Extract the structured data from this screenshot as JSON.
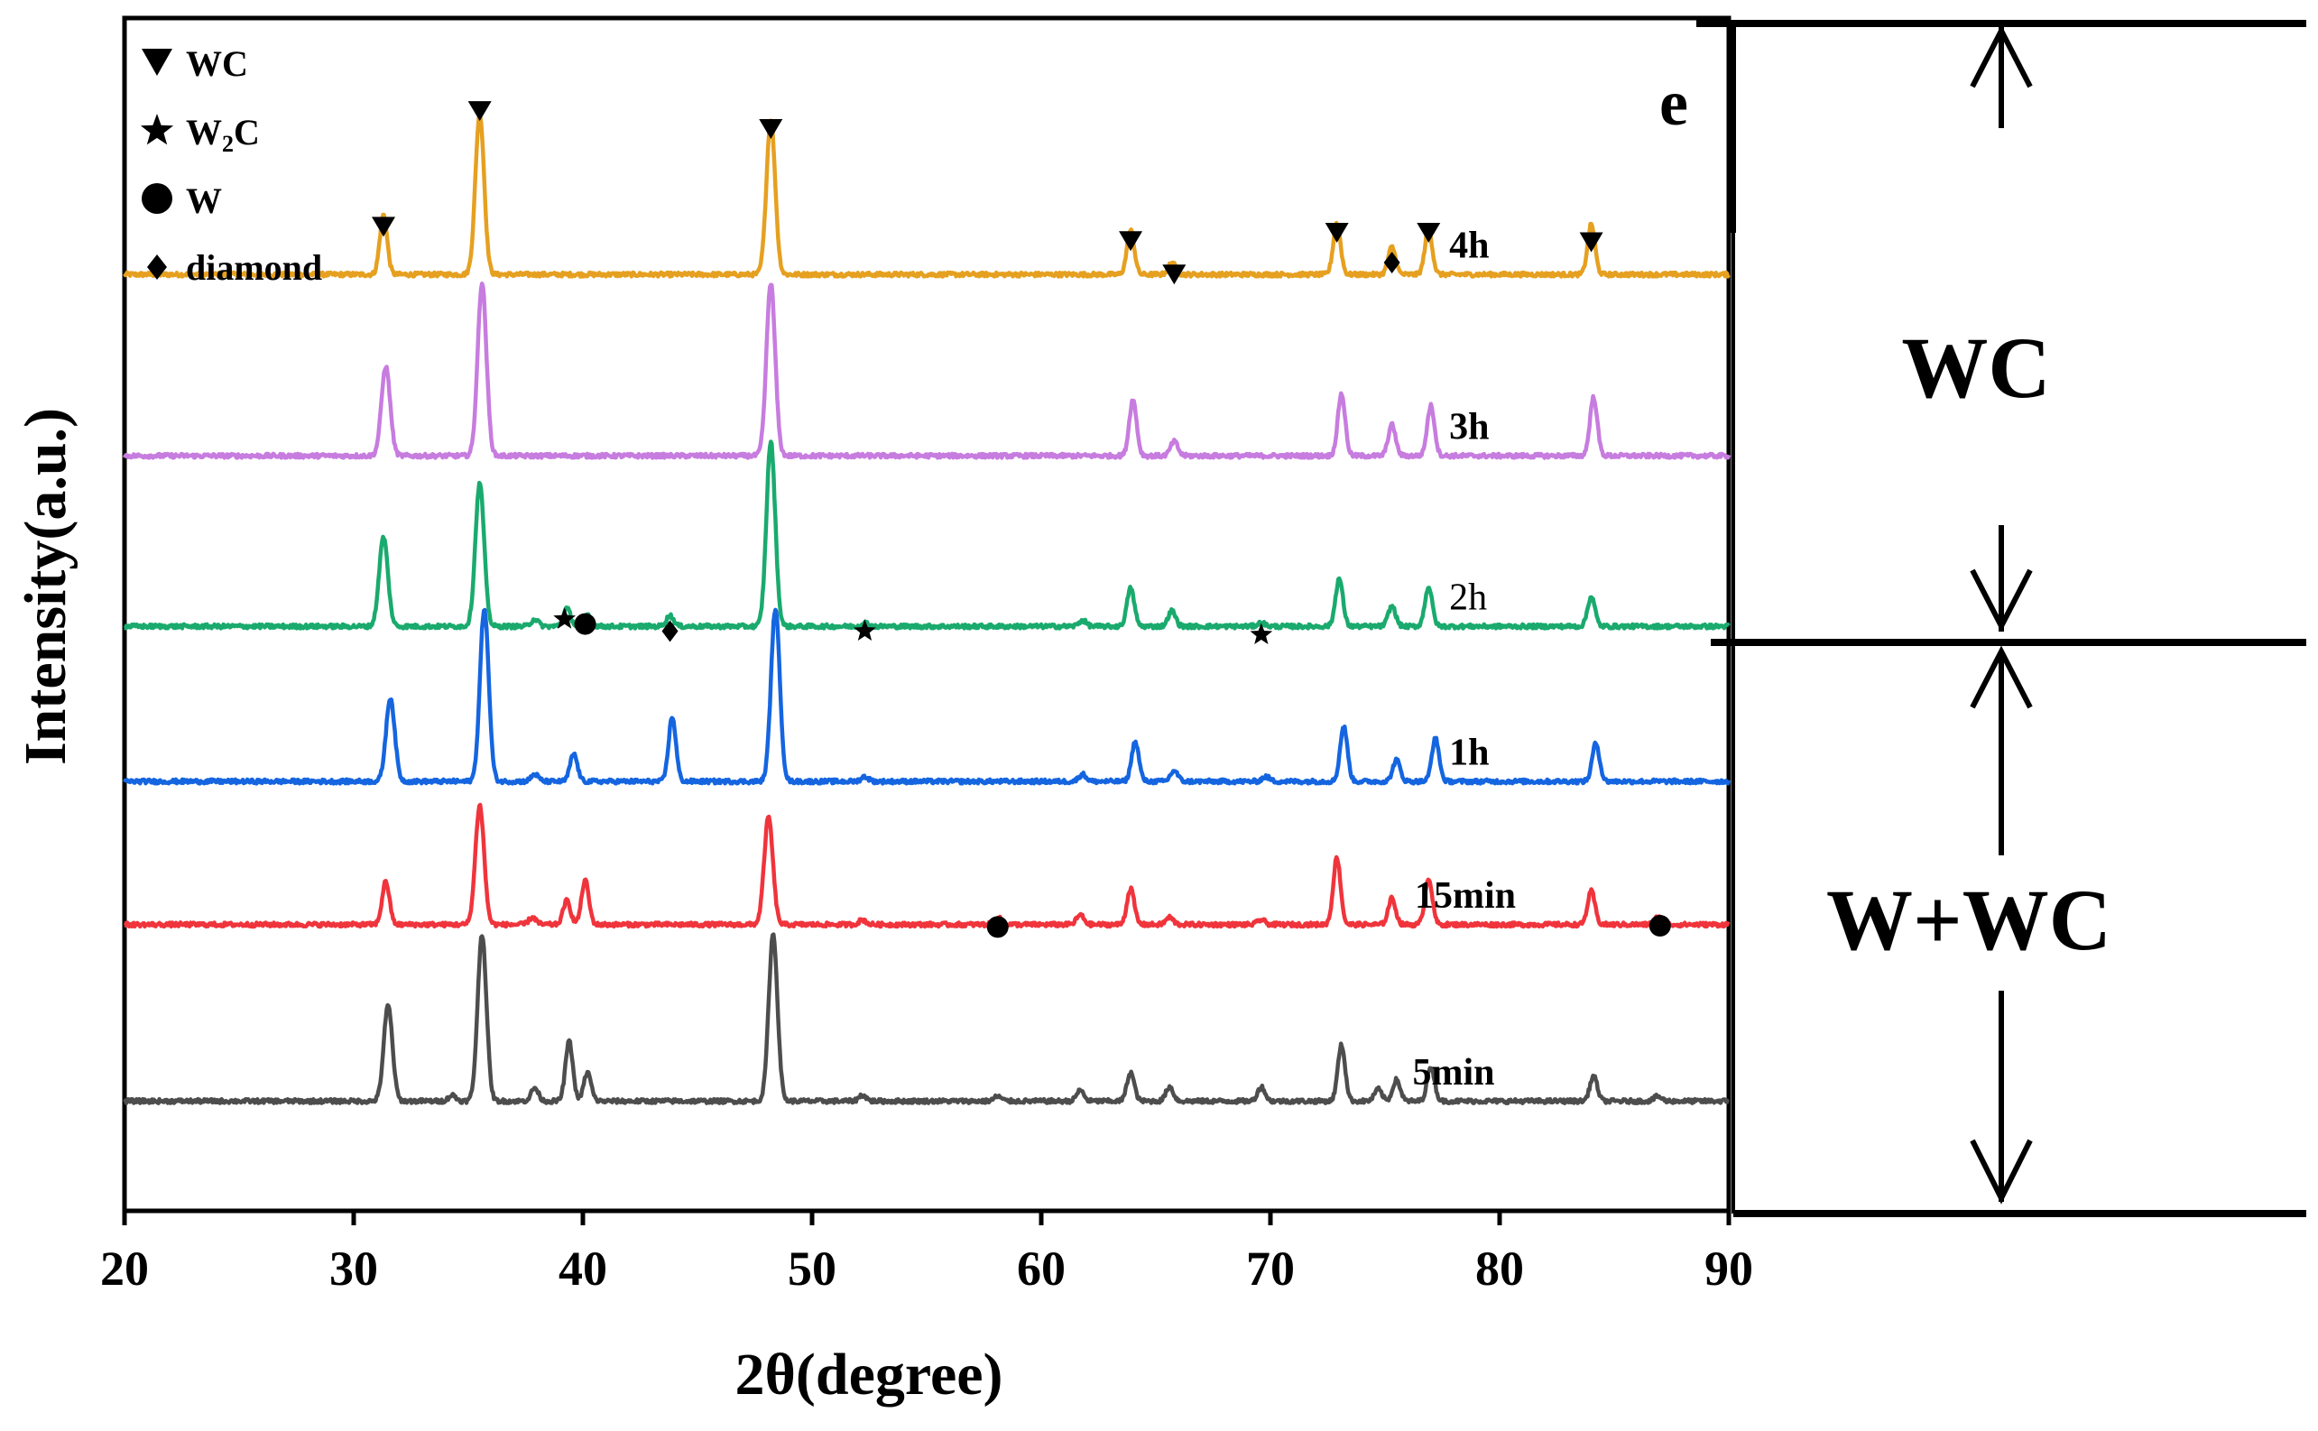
{
  "panel_letter": "e",
  "legend": [
    {
      "symbol": "down-triangle",
      "text": "WC"
    },
    {
      "symbol": "star",
      "text": "W",
      "sub": "2",
      "tail": "C"
    },
    {
      "symbol": "circle",
      "text": "W"
    },
    {
      "symbol": "diamond",
      "text": "diamond"
    }
  ],
  "regions": {
    "upper": "WC",
    "lower": "W+WC"
  },
  "chart_data": {
    "type": "line",
    "title": "",
    "xlabel": "2θ(degree)",
    "ylabel": "Intensity(a.u.)",
    "xlim": [
      20,
      90
    ],
    "xticks": [
      20,
      30,
      40,
      50,
      60,
      70,
      80,
      90
    ],
    "ylim": [
      0,
      100
    ],
    "yticks": [],
    "grid": false,
    "series": [
      {
        "name": "4h",
        "color": "#E6A020",
        "baseline": 78.5,
        "label_weight": "bold",
        "peaks": [
          [
            31.3,
            5.0
          ],
          [
            35.5,
            13.5
          ],
          [
            48.2,
            13.0
          ],
          [
            63.9,
            3.7
          ],
          [
            65.7,
            1.0
          ],
          [
            72.9,
            4.3
          ],
          [
            75.3,
            2.3
          ],
          [
            76.9,
            3.8
          ],
          [
            84.0,
            4.2
          ]
        ]
      },
      {
        "name": "3h",
        "color": "#C77CDF",
        "baseline": 63.3,
        "label_weight": "bold",
        "peaks": [
          [
            31.4,
            7.5
          ],
          [
            35.6,
            14.5
          ],
          [
            48.2,
            14.5
          ],
          [
            64.0,
            4.7
          ],
          [
            65.8,
            1.2
          ],
          [
            73.1,
            5.2
          ],
          [
            75.3,
            2.6
          ],
          [
            77.0,
            4.2
          ],
          [
            84.1,
            4.9
          ]
        ]
      },
      {
        "name": "2h",
        "color": "#1AAA6E",
        "baseline": 49.0,
        "label_weight": "normal",
        "peaks": [
          [
            31.3,
            7.5
          ],
          [
            35.5,
            12.0
          ],
          [
            37.9,
            0.6
          ],
          [
            39.3,
            1.5
          ],
          [
            40.2,
            1.0
          ],
          [
            43.8,
            0.9
          ],
          [
            48.2,
            15.5
          ],
          [
            52.3,
            0.3
          ],
          [
            61.8,
            0.5
          ],
          [
            63.9,
            3.2
          ],
          [
            65.7,
            1.3
          ],
          [
            69.6,
            0.3
          ],
          [
            73.0,
            4.0
          ],
          [
            75.3,
            1.7
          ],
          [
            76.9,
            3.3
          ],
          [
            84.0,
            2.5
          ]
        ]
      },
      {
        "name": "1h",
        "color": "#1565E0",
        "baseline": 36.0,
        "label_weight": "bold",
        "peaks": [
          [
            31.6,
            7.0
          ],
          [
            35.7,
            14.5
          ],
          [
            37.9,
            0.6
          ],
          [
            39.6,
            2.3
          ],
          [
            43.9,
            5.4
          ],
          [
            48.4,
            14.5
          ],
          [
            52.3,
            0.4
          ],
          [
            61.8,
            0.6
          ],
          [
            64.1,
            3.3
          ],
          [
            65.8,
            0.9
          ],
          [
            69.8,
            0.4
          ],
          [
            73.2,
            4.6
          ],
          [
            75.5,
            1.8
          ],
          [
            77.2,
            3.6
          ],
          [
            84.2,
            3.2
          ]
        ]
      },
      {
        "name": "15min",
        "color": "#F0343C",
        "baseline": 24.0,
        "label_weight": "bold",
        "peaks": [
          [
            31.4,
            3.6
          ],
          [
            35.5,
            10.0
          ],
          [
            37.8,
            0.6
          ],
          [
            39.3,
            2.0
          ],
          [
            40.1,
            3.7
          ],
          [
            48.1,
            9.0
          ],
          [
            52.2,
            0.4
          ],
          [
            58.1,
            0.6
          ],
          [
            61.7,
            0.8
          ],
          [
            63.9,
            3.0
          ],
          [
            65.6,
            0.6
          ],
          [
            69.6,
            0.4
          ],
          [
            72.9,
            5.6
          ],
          [
            75.3,
            2.2
          ],
          [
            76.9,
            3.9
          ],
          [
            84.0,
            2.8
          ],
          [
            86.9,
            0.6
          ]
        ]
      },
      {
        "name": "5min",
        "color": "#4D4D4D",
        "baseline": 9.2,
        "label_weight": "bold",
        "peaks": [
          [
            31.5,
            8.0
          ],
          [
            34.3,
            0.5
          ],
          [
            35.6,
            14.0
          ],
          [
            37.9,
            1.1
          ],
          [
            39.4,
            5.0
          ],
          [
            40.2,
            2.4
          ],
          [
            48.3,
            14.0
          ],
          [
            52.2,
            0.5
          ],
          [
            58.1,
            0.4
          ],
          [
            61.7,
            0.9
          ],
          [
            63.9,
            2.4
          ],
          [
            65.6,
            1.2
          ],
          [
            69.6,
            1.2
          ],
          [
            73.1,
            4.7
          ],
          [
            74.7,
            1.0
          ],
          [
            75.5,
            1.8
          ],
          [
            77.0,
            2.9
          ],
          [
            84.1,
            2.1
          ],
          [
            86.9,
            0.4
          ]
        ]
      }
    ],
    "annotations": [
      {
        "symbol": "down-triangle",
        "x": 31.3,
        "y": 82.5
      },
      {
        "symbol": "down-triangle",
        "x": 35.5,
        "y": 92.2
      },
      {
        "symbol": "down-triangle",
        "x": 48.2,
        "y": 90.7
      },
      {
        "symbol": "down-triangle",
        "x": 63.9,
        "y": 81.3
      },
      {
        "symbol": "down-triangle",
        "x": 65.8,
        "y": 78.5
      },
      {
        "symbol": "down-triangle",
        "x": 72.9,
        "y": 82.0
      },
      {
        "symbol": "down-triangle",
        "x": 76.9,
        "y": 82.0
      },
      {
        "symbol": "down-triangle",
        "x": 84.0,
        "y": 81.2
      },
      {
        "symbol": "diamond",
        "x": 75.3,
        "y": 79.5
      },
      {
        "symbol": "star",
        "x": 39.2,
        "y": 49.6
      },
      {
        "symbol": "circle",
        "x": 40.1,
        "y": 49.2
      },
      {
        "symbol": "diamond",
        "x": 43.8,
        "y": 48.6
      },
      {
        "symbol": "star",
        "x": 52.3,
        "y": 48.6
      },
      {
        "symbol": "star",
        "x": 69.6,
        "y": 48.3
      },
      {
        "symbol": "circle",
        "x": 58.1,
        "y": 23.8
      },
      {
        "symbol": "circle",
        "x": 87.0,
        "y": 23.9
      }
    ]
  }
}
